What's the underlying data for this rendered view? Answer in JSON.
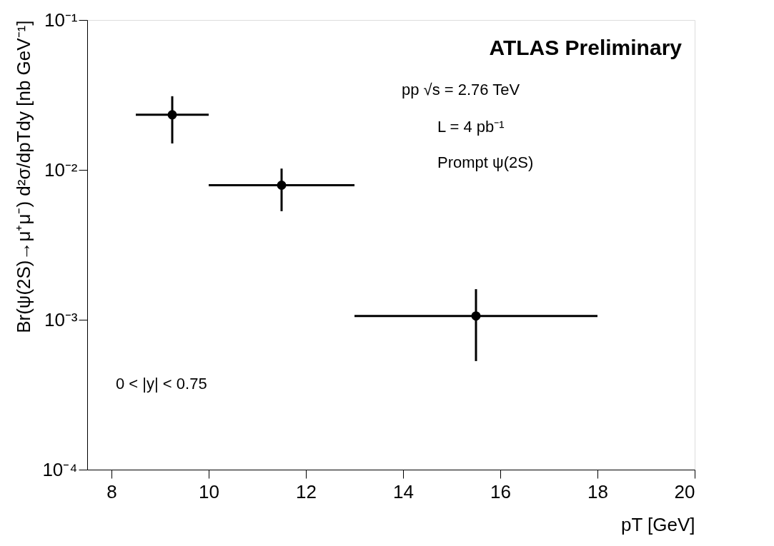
{
  "chart_data": {
    "type": "scatter",
    "xlabel": "pT [GeV]",
    "ylabel": "Br(ψ(2S)→μ⁺μ⁻) d²σ/dpTdy [nb GeV⁻¹]",
    "x": [
      9.25,
      11.5,
      15.5
    ],
    "values": [
      0.0233,
      0.0079,
      0.00106
    ],
    "errors": [
      [
        0.015,
        0.031
      ],
      [
        0.0053,
        0.0102
      ],
      [
        0.00053,
        0.0016
      ]
    ],
    "xerrors": [
      [
        8.5,
        10
      ],
      [
        10,
        13
      ],
      [
        13,
        18
      ]
    ],
    "color": "#000000",
    "marker": "circle",
    "log": "y",
    "xlim": [
      7.5,
      20
    ],
    "xticks": [
      8,
      10,
      12,
      14,
      16,
      18,
      20
    ],
    "ylim": [
      0.0001,
      0.1
    ],
    "yticks": [
      {
        "value": 0.0001,
        "label": "10⁻⁴"
      },
      {
        "value": 0.001,
        "label": "10⁻³"
      },
      {
        "value": 0.01,
        "label": "10⁻²"
      },
      {
        "value": 0.1,
        "label": "10⁻¹"
      }
    ],
    "grid": false,
    "annotations": [
      "ATLAS Preliminary",
      "pp √s = 2.76 TeV",
      "L = 4 pb⁻¹",
      "Prompt ψ(2S)",
      "0 < |y| < 0.75"
    ]
  }
}
